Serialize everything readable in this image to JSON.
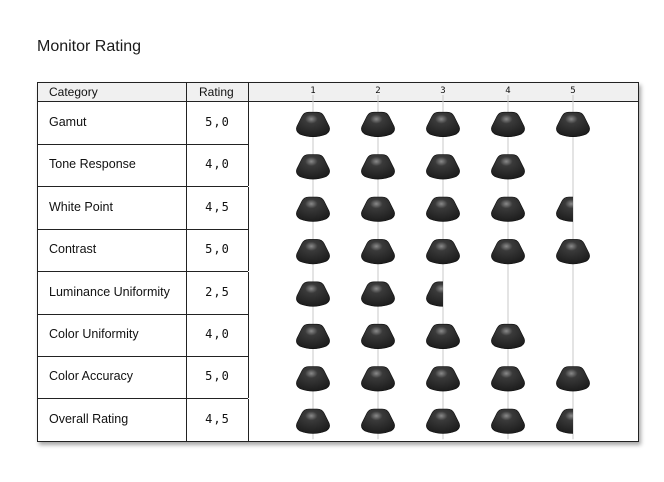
{
  "title": "Monitor Rating",
  "headers": {
    "category": "Category",
    "rating": "Rating"
  },
  "chart_data": {
    "type": "table",
    "scale_ticks": [
      "1",
      "2",
      "3",
      "4",
      "5"
    ],
    "max": 5,
    "rows": [
      {
        "category": "Gamut",
        "rating_text": "5,0",
        "value": 5.0
      },
      {
        "category": "Tone Response",
        "rating_text": "4,0",
        "value": 4.0
      },
      {
        "category": "White Point",
        "rating_text": "4,5",
        "value": 4.5
      },
      {
        "category": "Contrast",
        "rating_text": "5,0",
        "value": 5.0
      },
      {
        "category": "Luminance Uniformity",
        "rating_text": "2,5",
        "value": 2.5
      },
      {
        "category": "Color Uniformity",
        "rating_text": "4,0",
        "value": 4.0
      },
      {
        "category": "Color Accuracy",
        "rating_text": "5,0",
        "value": 5.0
      },
      {
        "category": "Overall Rating",
        "rating_text": "4,5",
        "value": 4.5
      }
    ],
    "icon": "knob-icon",
    "icon_color": "#1b1b1b",
    "gridline_color": "#c8c8c8"
  }
}
